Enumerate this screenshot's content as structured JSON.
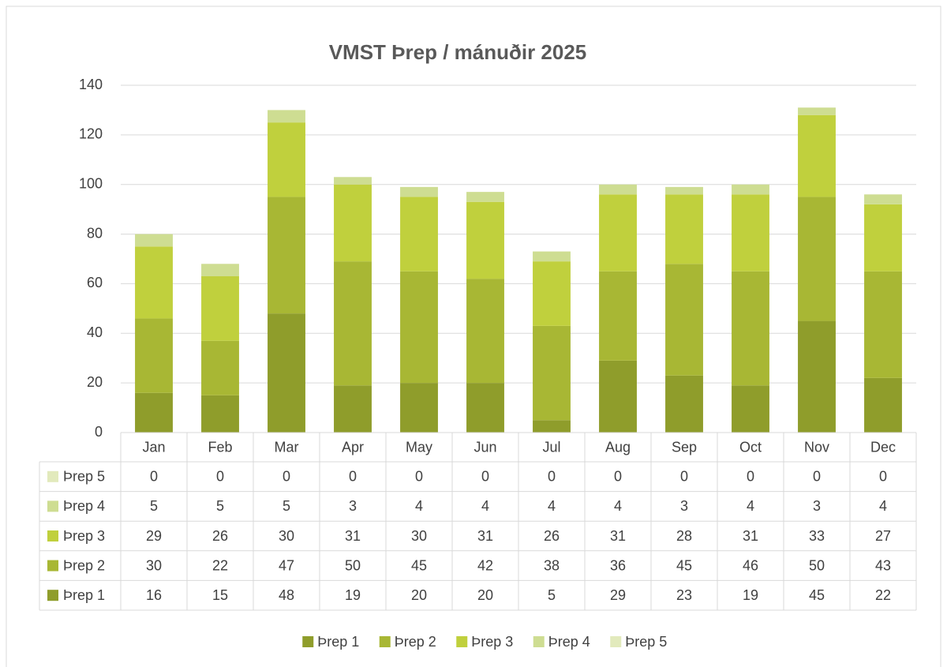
{
  "chart_data": {
    "type": "stacked_bar",
    "title": "VMST Þrep / mánuðir 2025",
    "categories": [
      "Jan",
      "Feb",
      "Mar",
      "Apr",
      "May",
      "Jun",
      "Jul",
      "Aug",
      "Sep",
      "Oct",
      "Nov",
      "Dec"
    ],
    "series": [
      {
        "name": "Þrep 1",
        "color": "#8f9d2b",
        "values": [
          16,
          15,
          48,
          19,
          20,
          20,
          5,
          29,
          23,
          19,
          45,
          22
        ]
      },
      {
        "name": "Þrep 2",
        "color": "#a8b734",
        "values": [
          30,
          22,
          47,
          50,
          45,
          42,
          38,
          36,
          45,
          46,
          50,
          43
        ]
      },
      {
        "name": "Þrep 3",
        "color": "#c0d03d",
        "values": [
          29,
          26,
          30,
          31,
          30,
          31,
          26,
          31,
          28,
          31,
          33,
          27
        ]
      },
      {
        "name": "Þrep 4",
        "color": "#cedd92",
        "values": [
          5,
          5,
          5,
          3,
          4,
          4,
          4,
          4,
          3,
          4,
          3,
          4
        ]
      },
      {
        "name": "Þrep 5",
        "color": "#e2eabc",
        "values": [
          0,
          0,
          0,
          0,
          0,
          0,
          0,
          0,
          0,
          0,
          0,
          0
        ]
      }
    ],
    "ylim": [
      0,
      140
    ],
    "yticks": [
      0,
      20,
      40,
      60,
      80,
      100,
      120,
      140
    ],
    "grid": true,
    "legend": "bottom",
    "data_table": true
  }
}
